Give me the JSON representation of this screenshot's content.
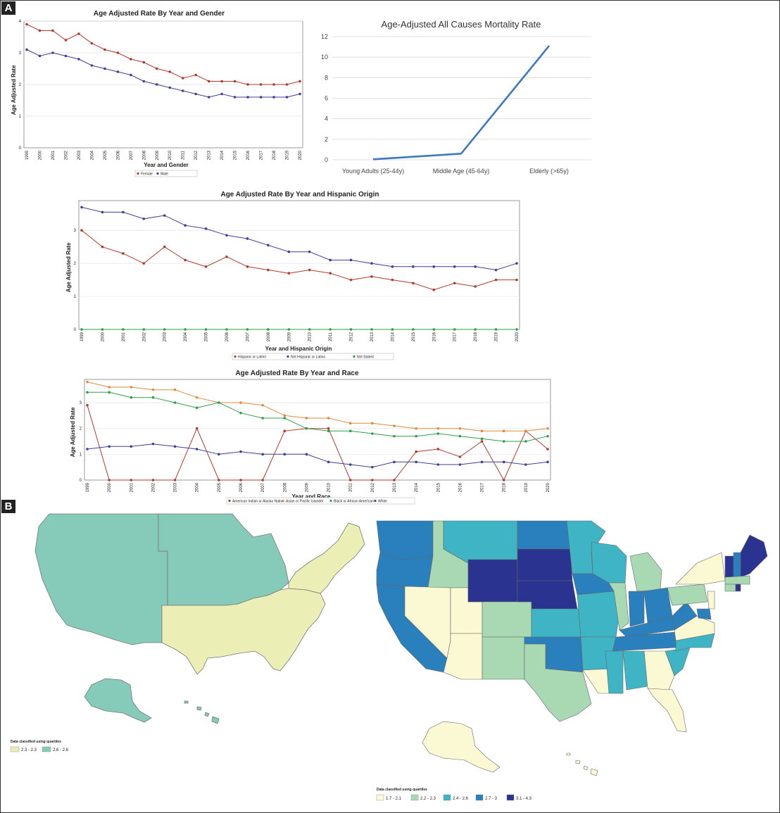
{
  "panels": [
    "A",
    "B"
  ],
  "chart_data": [
    {
      "id": "gender",
      "type": "line",
      "title": "Age Adjusted Rate By Year and Gender",
      "xlabel": "Year and Gender",
      "ylabel": "Age Adjusted Rate",
      "ylim": [
        0,
        4
      ],
      "yticks": [
        "0",
        "1",
        "2",
        "3",
        "4"
      ],
      "grid": true,
      "legend_position": "bottom",
      "categories": [
        "1999",
        "2000",
        "2001",
        "2002",
        "2003",
        "2004",
        "2005",
        "2006",
        "2007",
        "2008",
        "2009",
        "2010",
        "2011",
        "2012",
        "2013",
        "2014",
        "2015",
        "2016",
        "2017",
        "2018",
        "2019",
        "2020"
      ],
      "series": [
        {
          "name": "Female",
          "color": "#b03a2e",
          "values": [
            3.9,
            3.7,
            3.7,
            3.4,
            3.6,
            3.3,
            3.1,
            3.0,
            2.8,
            2.7,
            2.5,
            2.4,
            2.2,
            2.3,
            2.1,
            2.1,
            2.1,
            2.0,
            2.0,
            2.0,
            2.0,
            2.1
          ]
        },
        {
          "name": "Male",
          "color": "#3f3f95",
          "values": [
            3.1,
            2.9,
            3.0,
            2.9,
            2.8,
            2.6,
            2.5,
            2.4,
            2.3,
            2.1,
            2.0,
            1.9,
            1.8,
            1.7,
            1.6,
            1.7,
            1.6,
            1.6,
            1.6,
            1.6,
            1.6,
            1.7
          ]
        }
      ]
    },
    {
      "id": "mortality",
      "type": "line",
      "title": "Age-Adjusted All Causes Mortality Rate",
      "xlabel": "",
      "ylabel": "",
      "ylim": [
        0,
        12
      ],
      "yticks": [
        "0",
        "2",
        "4",
        "6",
        "8",
        "10",
        "12"
      ],
      "grid": true,
      "categories": [
        "Young Adults (25-44y)",
        "Middle Age (45-64y)",
        "Elderly (>65y)"
      ],
      "series": [
        {
          "color": "#3d78c1",
          "values": [
            0.05,
            0.6,
            11.1
          ]
        }
      ]
    },
    {
      "id": "hispanic",
      "type": "line",
      "title": "Age Adjusted Rate By Year and Hispanic Origin",
      "xlabel": "Year and Hispanic Origin",
      "ylabel": "Age Adjusted Rate",
      "ylim": [
        0,
        3.9
      ],
      "yticks": [
        "0",
        "1",
        "2",
        "3"
      ],
      "grid": true,
      "legend_position": "bottom",
      "categories": [
        "1999",
        "2000",
        "2001",
        "2002",
        "2003",
        "2004",
        "2005",
        "2006",
        "2007",
        "2008",
        "2009",
        "2010",
        "2011",
        "2012",
        "2013",
        "2014",
        "2015",
        "2016",
        "2017",
        "2018",
        "2019",
        "2020"
      ],
      "series": [
        {
          "name": "Hispanic or Latino",
          "color": "#b03a2e",
          "values": [
            3.0,
            2.5,
            2.3,
            2.0,
            2.5,
            2.1,
            1.9,
            2.2,
            1.9,
            1.8,
            1.7,
            1.8,
            1.7,
            1.5,
            1.6,
            1.5,
            1.4,
            1.2,
            1.4,
            1.3,
            1.5,
            1.5
          ]
        },
        {
          "name": "Not Hispanic or Latino",
          "color": "#3f3f95",
          "values": [
            3.7,
            3.55,
            3.55,
            3.35,
            3.45,
            3.15,
            3.05,
            2.85,
            2.75,
            2.55,
            2.35,
            2.35,
            2.1,
            2.1,
            2.0,
            1.9,
            1.9,
            1.9,
            1.9,
            1.9,
            1.8,
            2.0
          ]
        },
        {
          "name": "Not Stated",
          "color": "#2f9e4a",
          "values": [
            0,
            0,
            0,
            0,
            0,
            0,
            0,
            0,
            0,
            0,
            0,
            0,
            0,
            0,
            0,
            0,
            0,
            0,
            0,
            0,
            0,
            0
          ]
        }
      ]
    },
    {
      "id": "race",
      "type": "line",
      "title": "Age Adjusted Rate By Year and Race",
      "xlabel": "Year and Race",
      "ylabel": "Age Adjusted Rate",
      "ylim": [
        0,
        3.9
      ],
      "yticks": [
        "0",
        "1",
        "2",
        "3"
      ],
      "grid": true,
      "legend_position": "bottom",
      "categories": [
        "1999",
        "2000",
        "2001",
        "2002",
        "2003",
        "2004",
        "2005",
        "2006",
        "2007",
        "2008",
        "2009",
        "2010",
        "2011",
        "2012",
        "2013",
        "2014",
        "2015",
        "2016",
        "2017",
        "2018",
        "2019",
        "2020"
      ],
      "series": [
        {
          "name": "American Indian or Alaska Native",
          "color": "#b03a2e",
          "values": [
            2.9,
            0,
            0,
            0,
            0,
            2.0,
            0,
            0,
            0,
            1.9,
            2.0,
            2.0,
            0,
            0,
            0,
            1.1,
            1.2,
            0.9,
            1.5,
            0,
            1.9,
            1.2
          ]
        },
        {
          "name": "Asian or Pacific Islander",
          "color": "#e08a3c",
          "values": [
            3.8,
            3.6,
            3.6,
            3.5,
            3.5,
            3.2,
            3.0,
            3.0,
            2.9,
            2.5,
            2.4,
            2.4,
            2.2,
            2.2,
            2.1,
            2.0,
            2.0,
            2.0,
            1.9,
            1.9,
            1.9,
            2.0
          ]
        },
        {
          "name": "Black or African American",
          "color": "#2f9e4a",
          "values": [
            3.4,
            3.4,
            3.2,
            3.2,
            3.0,
            2.8,
            3.0,
            2.6,
            2.4,
            2.4,
            2.0,
            1.9,
            1.9,
            1.8,
            1.7,
            1.7,
            1.8,
            1.7,
            1.6,
            1.5,
            1.5,
            1.7
          ]
        },
        {
          "name": "White",
          "color": "#3f3f95",
          "values": [
            1.2,
            1.3,
            1.3,
            1.4,
            1.3,
            1.2,
            1.0,
            1.1,
            1.0,
            1.0,
            1.0,
            0.7,
            0.6,
            0.5,
            0.7,
            0.7,
            0.6,
            0.6,
            0.7,
            0.7,
            0.6,
            0.7
          ]
        }
      ]
    }
  ],
  "maps": [
    {
      "id": "regions",
      "legend_title": "Data classified using quartiles",
      "legend": [
        {
          "label": "2.3 - 2.3",
          "color": "#ecefb5"
        },
        {
          "label": "2.6 - 2.6",
          "color": "#86cbb9"
        }
      ]
    },
    {
      "id": "states",
      "legend_title": "Data classified using quartiles",
      "legend": [
        {
          "label": "1.7 - 2.1",
          "color": "#fbf9d4"
        },
        {
          "label": "2.2 - 2.3",
          "color": "#a8d9b3"
        },
        {
          "label": "2.4 - 2.6",
          "color": "#3fb4c5"
        },
        {
          "label": "2.7 - 3",
          "color": "#2a7fbd"
        },
        {
          "label": "3.1 - 4.3",
          "color": "#2a3390"
        }
      ]
    }
  ]
}
